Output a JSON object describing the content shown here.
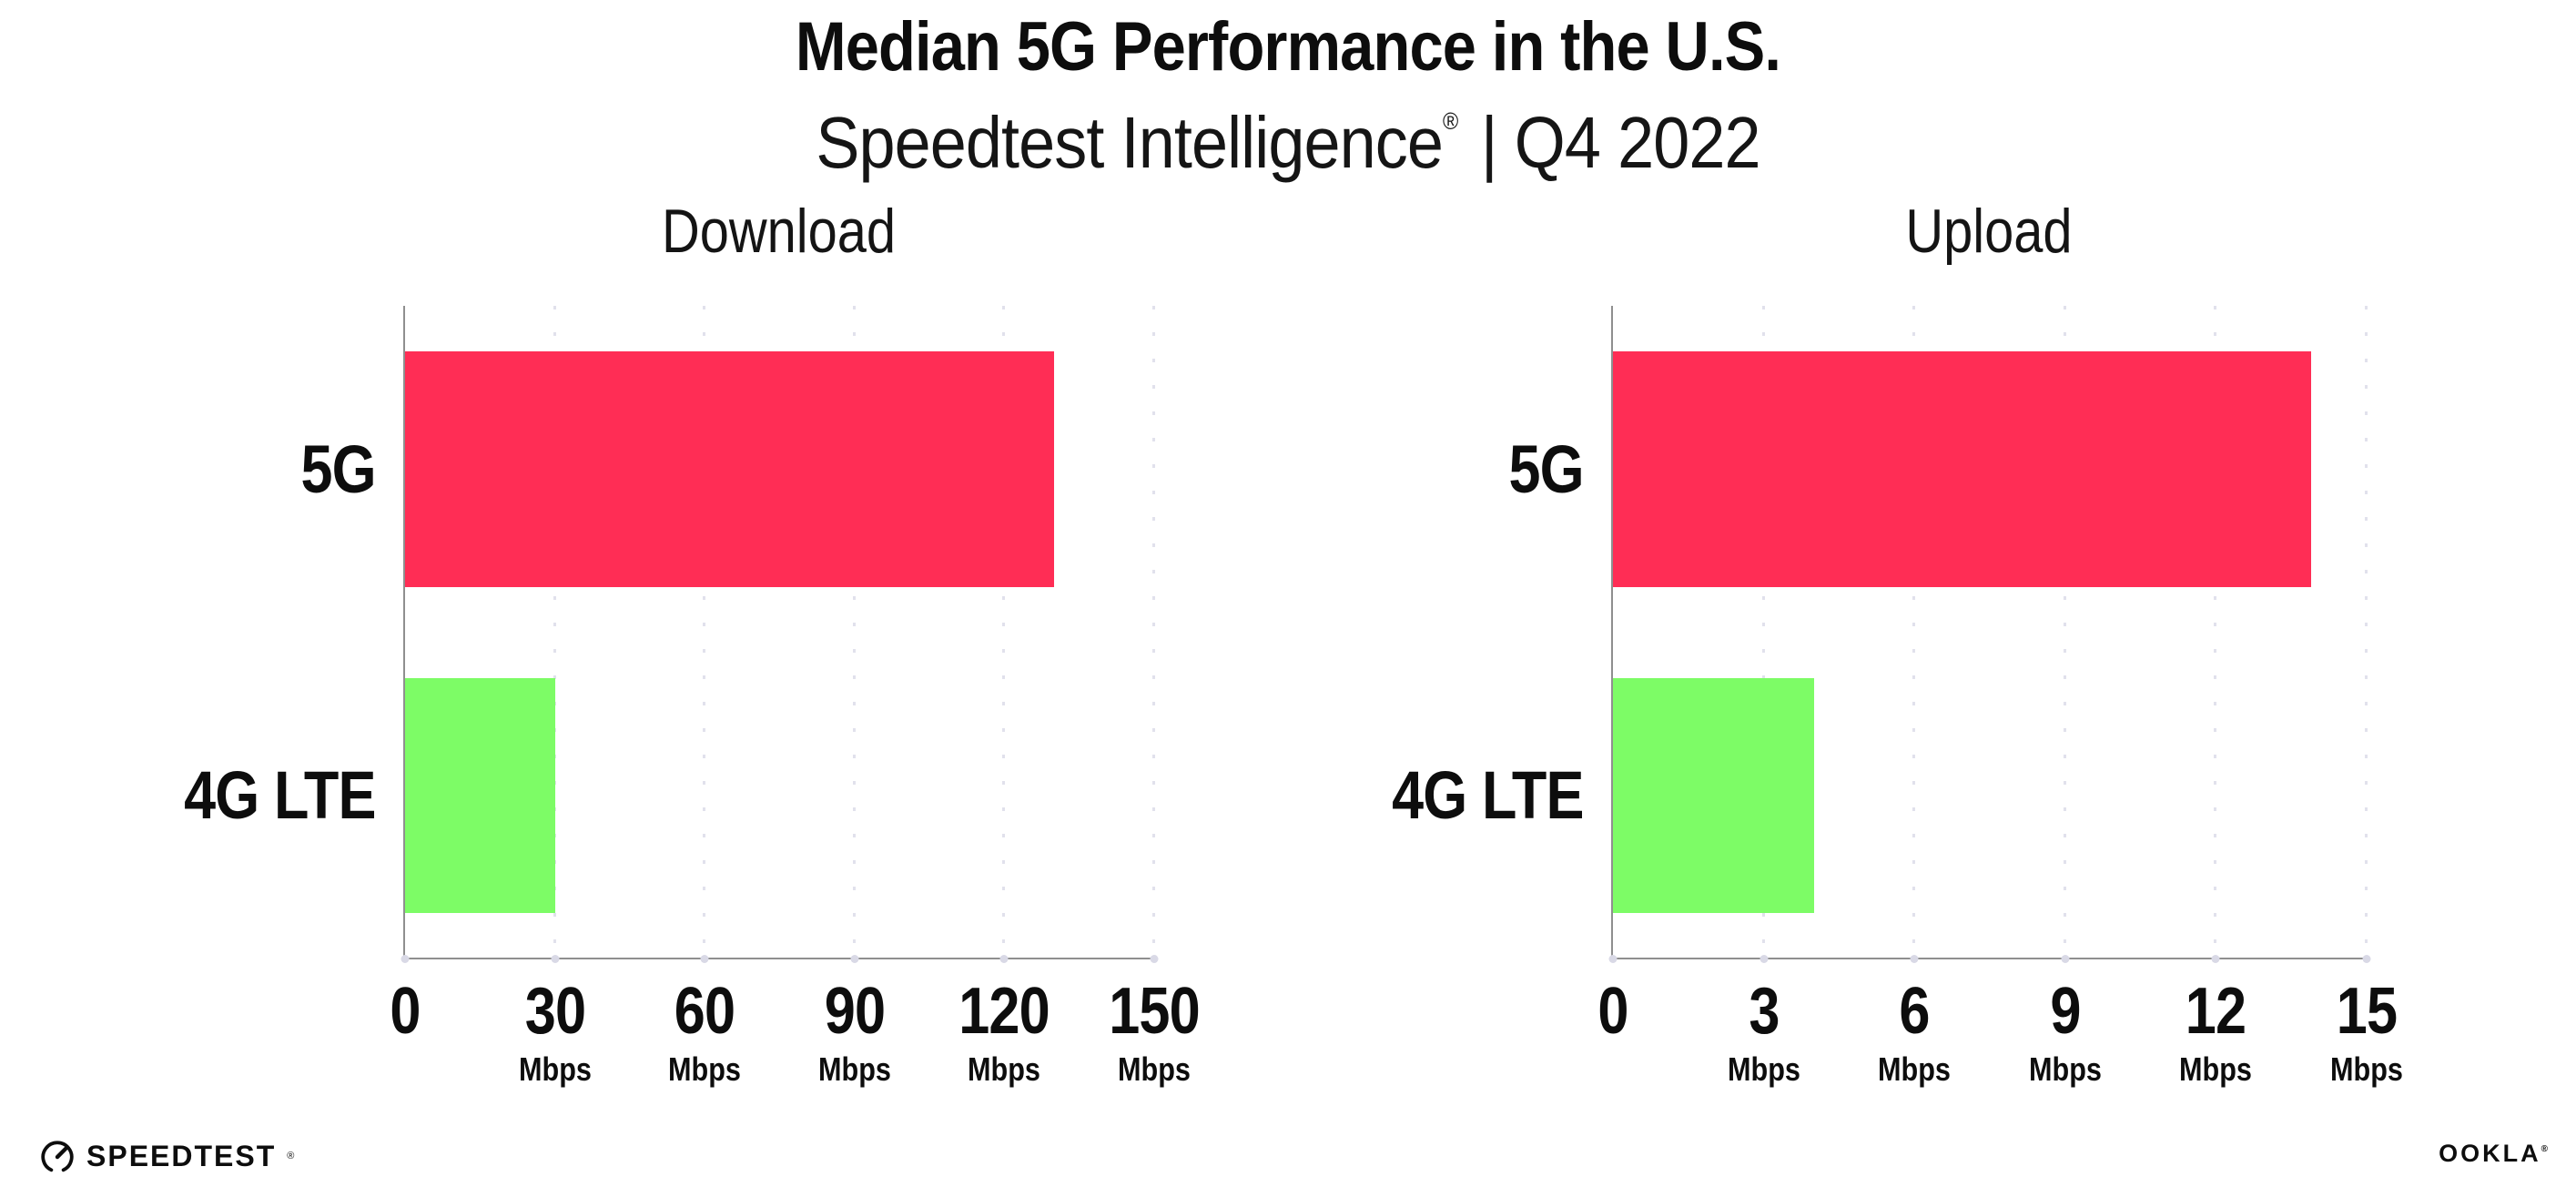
{
  "header": {
    "title": "Median 5G Performance in the U.S.",
    "subtitle_main": "Speedtest Intelligence",
    "subtitle_reg": "®",
    "subtitle_rest": "| Q4 2022"
  },
  "colors": {
    "bar_5g": "#ff2d55",
    "bar_4g_lte": "#7dfc66",
    "axis": "#8f8f8f",
    "gridline": "#e1e1ec",
    "text": "#0d0d0d"
  },
  "chart_data": [
    {
      "type": "bar",
      "orientation": "horizontal",
      "title": "Download",
      "categories": [
        "5G",
        "4G LTE"
      ],
      "values": [
        130,
        30
      ],
      "unit": "Mbps",
      "xlim": [
        0,
        150
      ],
      "xticks": [
        0,
        30,
        60,
        90,
        120,
        150
      ],
      "tick_unit_label": "Mbps",
      "bar_colors": [
        "#ff2d55",
        "#7dfc66"
      ],
      "grid": "vertical-dotted",
      "legend": "none"
    },
    {
      "type": "bar",
      "orientation": "horizontal",
      "title": "Upload",
      "categories": [
        "5G",
        "4G LTE"
      ],
      "values": [
        13.9,
        4
      ],
      "unit": "Mbps",
      "xlim": [
        0,
        15
      ],
      "xticks": [
        0,
        3,
        6,
        9,
        12,
        15
      ],
      "tick_unit_label": "Mbps",
      "bar_colors": [
        "#ff2d55",
        "#7dfc66"
      ],
      "grid": "vertical-dotted",
      "legend": "none"
    }
  ],
  "footer": {
    "speedtest_label": "SPEEDTEST",
    "speedtest_reg": "®",
    "speedtest_icon": "speedtest-gauge-icon",
    "ookla_label": "OOKLA",
    "ookla_reg": "®"
  }
}
